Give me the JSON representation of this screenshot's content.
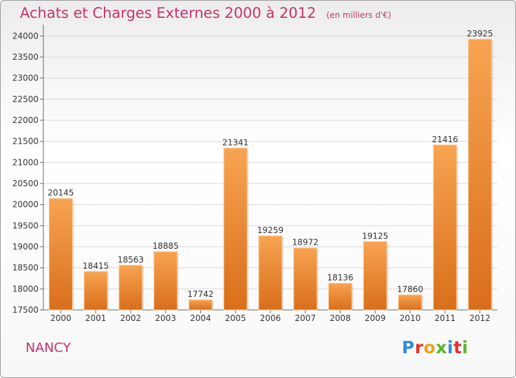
{
  "header": {
    "title": "Achats et Charges Externes 2000 à 2012",
    "subtitle": "(en milliers d'€)"
  },
  "footer": {
    "city": "NANCY",
    "logo_text": "Proxiti"
  },
  "colors": {
    "title": "#c4346c",
    "bar_top": "#f7a452",
    "bar_bottom": "#d96e1a"
  },
  "chart_data": {
    "type": "bar",
    "title": "Achats et Charges Externes 2000 à 2012",
    "subtitle": "(en milliers d'€)",
    "xlabel": "",
    "ylabel": "",
    "categories": [
      "2000",
      "2001",
      "2002",
      "2003",
      "2004",
      "2005",
      "2006",
      "2007",
      "2008",
      "2009",
      "2010",
      "2011",
      "2012"
    ],
    "values": [
      20145,
      18415,
      18563,
      18885,
      17742,
      21341,
      19259,
      18972,
      18136,
      19125,
      17860,
      21416,
      23925
    ],
    "data_labels": [
      "20145",
      "18415",
      "18563",
      "18885",
      "17742",
      "21341",
      "19259",
      "18972",
      "18136",
      "19125",
      "17860",
      "21416",
      "23925"
    ],
    "yticks": [
      "17500",
      "18000",
      "18500",
      "19000",
      "19500",
      "20000",
      "20500",
      "21000",
      "21500",
      "22000",
      "22500",
      "23000",
      "23500",
      "24000"
    ],
    "ylim": [
      17500,
      24200
    ],
    "grid": true
  }
}
